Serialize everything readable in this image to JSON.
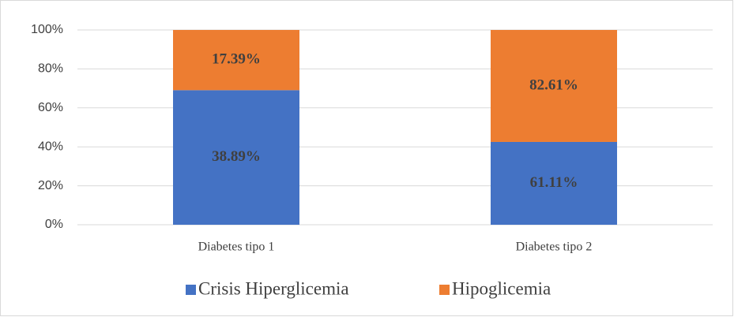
{
  "chart_data": {
    "type": "bar",
    "stacking": "percent",
    "categories": [
      "Diabetes tipo 1",
      "Diabetes tipo 2"
    ],
    "series": [
      {
        "name": "Crisis Hiperglicemia",
        "color": "#4472c4",
        "values": [
          38.89,
          61.11
        ],
        "value_labels": [
          "38.89%",
          "61.11%"
        ]
      },
      {
        "name": "Hipoglicemia",
        "color": "#ed7d31",
        "values": [
          17.39,
          82.61
        ],
        "value_labels": [
          "17.39%",
          "82.61%"
        ]
      }
    ],
    "ylim": [
      0,
      100
    ],
    "yticks": [
      {
        "value": 0,
        "label": "0%"
      },
      {
        "value": 20,
        "label": "20%"
      },
      {
        "value": 40,
        "label": "40%"
      },
      {
        "value": 60,
        "label": "60%"
      },
      {
        "value": 80,
        "label": "80%"
      },
      {
        "value": 100,
        "label": "100%"
      }
    ],
    "grid": true,
    "legend": "bottom"
  }
}
